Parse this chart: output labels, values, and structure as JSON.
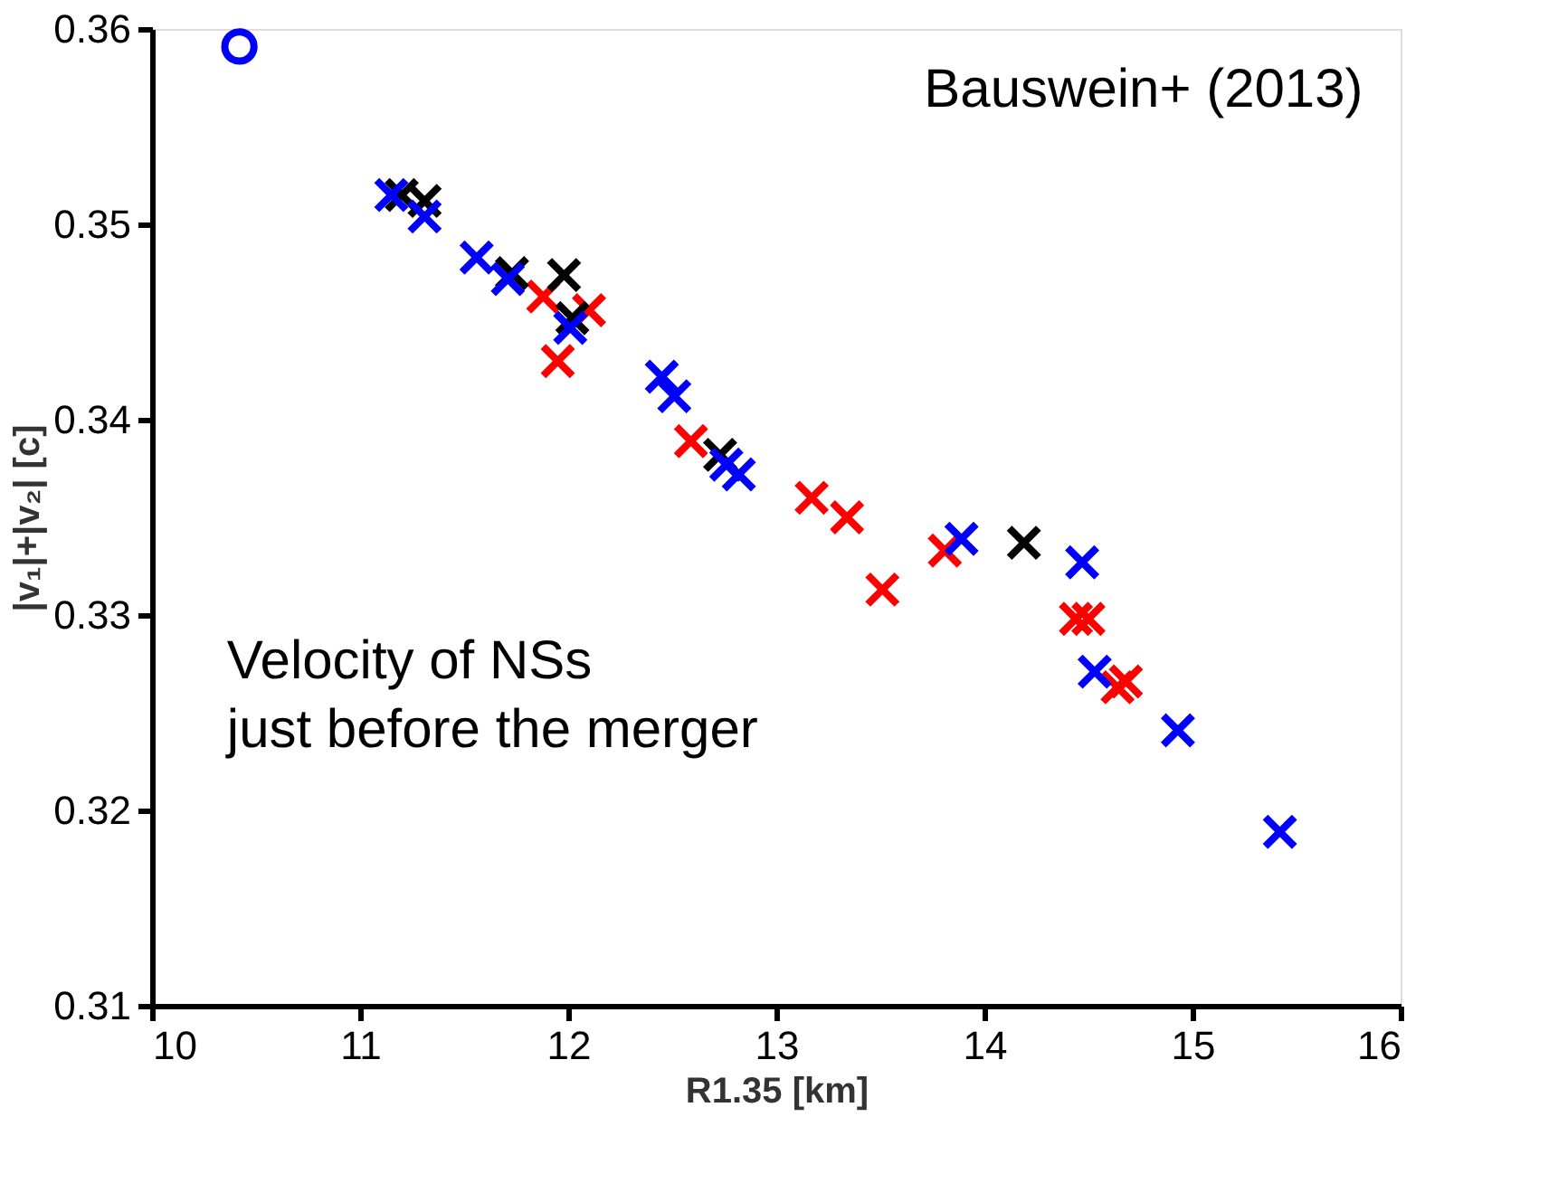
{
  "chart_data": {
    "type": "scatter",
    "xlabel": "R1.35 [km]",
    "ylabel": "|v₁|+|v₂| [c]",
    "xlim": [
      10,
      16
    ],
    "xticks": [
      10,
      11,
      12,
      13,
      14,
      15,
      16
    ],
    "ylim": [
      0.31,
      0.36
    ],
    "yticks": [
      0.31,
      0.32,
      0.33,
      0.34,
      0.35,
      0.36
    ],
    "grid": false,
    "legend": false,
    "annotations": [
      "Bauswein+ (2013)",
      "Velocity of NSs\n just before the merger"
    ],
    "series": [
      {
        "color": "#ff0000",
        "marker": "cross",
        "x": [
          11.88,
          11.95,
          12.1,
          12.59,
          13.17,
          13.34,
          13.51,
          13.81,
          14.44,
          14.5,
          14.64,
          14.68
        ],
        "values": [
          0.3463,
          0.343,
          0.3456,
          0.3389,
          0.336,
          0.335,
          0.3313,
          0.3333,
          0.3298,
          0.3298,
          0.3263,
          0.3266
        ]
      },
      {
        "color": "#000000",
        "marker": "cross",
        "x": [
          11.2,
          11.31,
          11.73,
          11.98,
          12.02,
          12.73,
          14.19
        ],
        "values": [
          0.3515,
          0.3512,
          0.3475,
          0.3474,
          0.3452,
          0.3382,
          0.3337
        ]
      },
      {
        "color": "#0000ff",
        "marker": "cross",
        "x": [
          11.15,
          11.31,
          11.56,
          11.71,
          12.01,
          12.45,
          12.51,
          12.76,
          12.82,
          13.89,
          14.47,
          14.53,
          14.93,
          15.42
        ],
        "values": [
          0.3515,
          0.3504,
          0.3483,
          0.3472,
          0.3447,
          0.3422,
          0.3412,
          0.3377,
          0.3372,
          0.3339,
          0.3327,
          0.3271,
          0.3241,
          0.3189
        ]
      },
      {
        "color": "#0000ff",
        "marker": "circle",
        "x": [
          10.42
        ],
        "values": [
          0.3591
        ]
      }
    ]
  }
}
